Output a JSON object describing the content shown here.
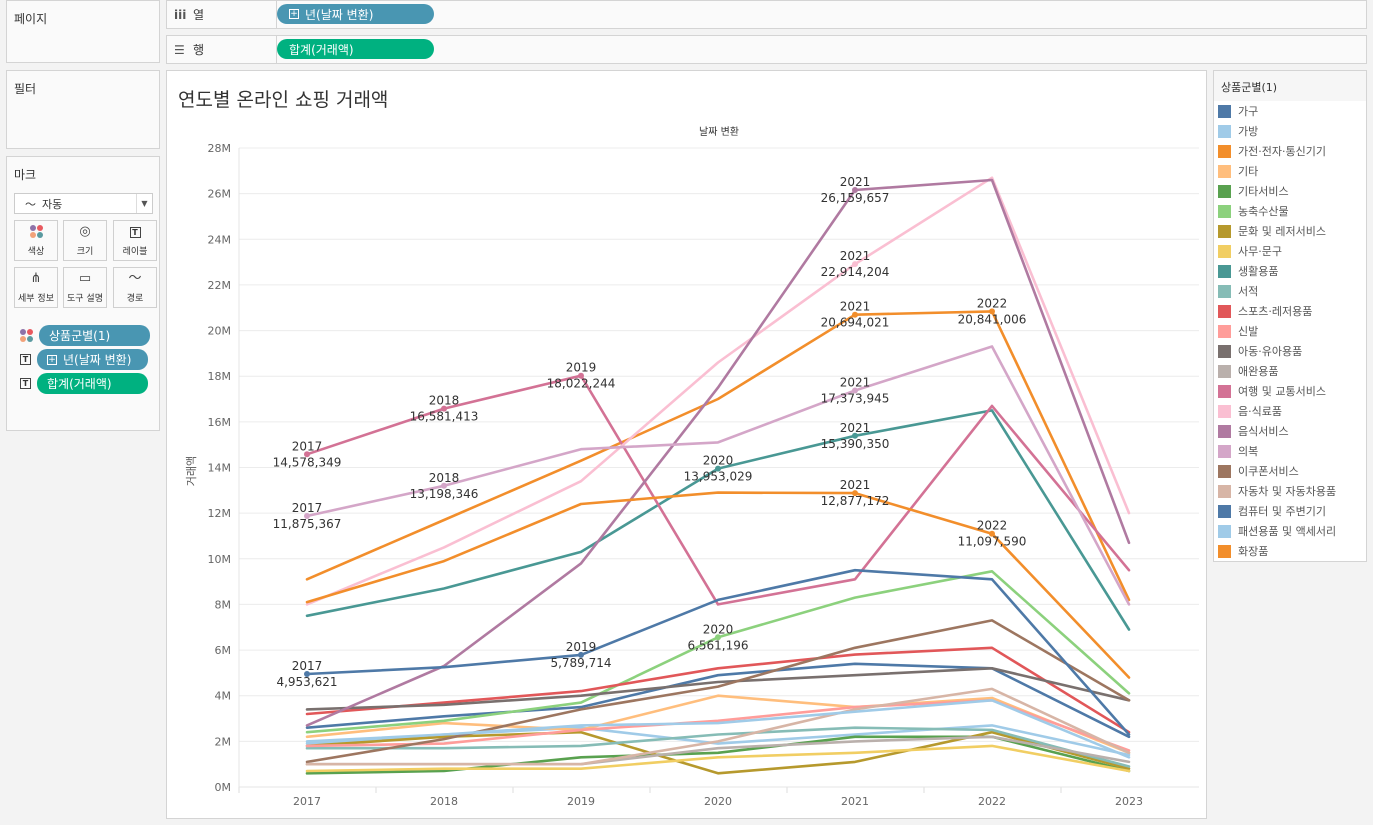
{
  "shelves": {
    "pages_label": "페이지",
    "filters_label": "필터",
    "columns": {
      "label": "열",
      "icon": "columns-icon",
      "pill": "년(날짜 변환)"
    },
    "rows": {
      "label": "행",
      "icon": "rows-icon",
      "pill": "합계(거래액)"
    }
  },
  "marks": {
    "title": "마크",
    "mark_type": "자동",
    "buttons": [
      {
        "id": "color",
        "label": "색상",
        "icon": "color-icon"
      },
      {
        "id": "size",
        "label": "크기",
        "icon": "size-icon"
      },
      {
        "id": "label",
        "label": "레이블",
        "icon": "label-icon"
      },
      {
        "id": "detail",
        "label": "세부 정보",
        "icon": "detail-icon"
      },
      {
        "id": "tooltip",
        "label": "도구 설명",
        "icon": "tooltip-icon"
      },
      {
        "id": "path",
        "label": "경로",
        "icon": "path-icon"
      }
    ],
    "fields": [
      {
        "icon": "color-icon",
        "label": "상품군별(1)",
        "color": "#4996b2"
      },
      {
        "icon": "label-icon",
        "label": "년(날짜 변환)",
        "color": "#4996b2",
        "has_plus": true
      },
      {
        "icon": "label-icon",
        "label": "합계(거래액)",
        "color": "#00b180"
      }
    ]
  },
  "legend": {
    "title": "상품군별(1)"
  },
  "chart_data": {
    "type": "line",
    "title": "연도별 온라인 쇼핑 거래액",
    "header": "날짜 변환",
    "xlabel": "",
    "ylabel": "거래액",
    "x": [
      "2017",
      "2018",
      "2019",
      "2020",
      "2021",
      "2022",
      "2023"
    ],
    "ylim": [
      0,
      28000000
    ],
    "yticks": [
      0,
      2000000,
      4000000,
      6000000,
      8000000,
      10000000,
      12000000,
      14000000,
      16000000,
      18000000,
      20000000,
      22000000,
      24000000,
      26000000,
      28000000
    ],
    "ytick_labels": [
      "0M",
      "2M",
      "4M",
      "6M",
      "8M",
      "10M",
      "12M",
      "14M",
      "16M",
      "18M",
      "20M",
      "22M",
      "24M",
      "26M",
      "28M"
    ],
    "grid": true,
    "legend_position": "right",
    "series": [
      {
        "name": "가구",
        "color": "#4e79a7",
        "values": [
          2600000,
          3100000,
          3500000,
          4900000,
          5400000,
          5200000,
          2200000
        ]
      },
      {
        "name": "가방",
        "color": "#a0cbe8",
        "values": [
          1900000,
          2300000,
          2600000,
          1900000,
          2300000,
          2700000,
          1400000
        ]
      },
      {
        "name": "가전·전자·통신기기",
        "color": "#f28e2b",
        "values": [
          9100000,
          11700000,
          14300000,
          17000000,
          20694021,
          20841006,
          8200000
        ]
      },
      {
        "name": "기타",
        "color": "#ffbe7d",
        "values": [
          2200000,
          2800000,
          2500000,
          4000000,
          3500000,
          3900000,
          1500000
        ]
      },
      {
        "name": "기타서비스",
        "color": "#59a14f",
        "values": [
          600000,
          700000,
          1300000,
          1500000,
          2200000,
          2200000,
          700000
        ]
      },
      {
        "name": "농축수산물",
        "color": "#8cd17d",
        "values": [
          2400000,
          2900000,
          3700000,
          6561196,
          8300000,
          9450000,
          4100000
        ]
      },
      {
        "name": "문화 및 레저서비스",
        "color": "#b6992d",
        "values": [
          1800000,
          2200000,
          2400000,
          600000,
          1100000,
          2400000,
          800000
        ]
      },
      {
        "name": "사무·문구",
        "color": "#f1ce63",
        "values": [
          700000,
          800000,
          800000,
          1300000,
          1500000,
          1800000,
          700000
        ]
      },
      {
        "name": "생활용품",
        "color": "#499894",
        "values": [
          7500000,
          8700000,
          10300000,
          13953029,
          15390350,
          16500000,
          6900000
        ]
      },
      {
        "name": "서적",
        "color": "#86bcb6",
        "values": [
          1700000,
          1700000,
          1800000,
          2300000,
          2600000,
          2500000,
          900000
        ]
      },
      {
        "name": "스포츠·레저용품",
        "color": "#e15759",
        "values": [
          3200000,
          3700000,
          4200000,
          5200000,
          5800000,
          6100000,
          2400000
        ]
      },
      {
        "name": "신발",
        "color": "#ff9d9a",
        "values": [
          1800000,
          1900000,
          2500000,
          2900000,
          3500000,
          3800000,
          1600000
        ]
      },
      {
        "name": "아동·유아용품",
        "color": "#79706e",
        "values": [
          3400000,
          3600000,
          4000000,
          4600000,
          4900000,
          5200000,
          3800000
        ]
      },
      {
        "name": "애완용품",
        "color": "#bab0ac",
        "values": [
          1000000,
          1000000,
          1000000,
          1700000,
          2000000,
          2200000,
          1100000
        ]
      },
      {
        "name": "여행 및 교통서비스",
        "color": "#d37295",
        "values": [
          14578349,
          16581413,
          18022244,
          8000000,
          9100000,
          16700000,
          9500000
        ]
      },
      {
        "name": "음·식료품",
        "color": "#fabfd2",
        "values": [
          8000000,
          10500000,
          13400000,
          18600000,
          22914204,
          26700000,
          12000000
        ]
      },
      {
        "name": "음식서비스",
        "color": "#b07aa1",
        "values": [
          2700000,
          5300000,
          9800000,
          17500000,
          26159657,
          26600000,
          10700000
        ]
      },
      {
        "name": "의복",
        "color": "#d4a6c8",
        "values": [
          11875367,
          13198346,
          14800000,
          15100000,
          17373945,
          19300000,
          8000000
        ]
      },
      {
        "name": "이쿠폰서비스",
        "color": "#9d7660",
        "values": [
          1100000,
          2100000,
          3400000,
          4400000,
          6100000,
          7300000,
          3800000
        ]
      },
      {
        "name": "자동차 및 자동차용품",
        "color": "#d7b5a6",
        "values": [
          1000000,
          1000000,
          1000000,
          2000000,
          3400000,
          4300000,
          1500000
        ]
      },
      {
        "name": "컴퓨터 및 주변기기",
        "color": "#4e79a7",
        "values": [
          4953621,
          5250000,
          5789714,
          8200000,
          9500000,
          9100000,
          2300000
        ]
      },
      {
        "name": "패션용품 및 액세서리",
        "color": "#a0cbe8",
        "values": [
          2000000,
          2300000,
          2700000,
          2800000,
          3300000,
          3800000,
          1300000
        ]
      },
      {
        "name": "화장품",
        "color": "#f28e2b",
        "values": [
          8100000,
          9900000,
          12400000,
          12900000,
          12877172,
          11097590,
          4800000
        ]
      }
    ],
    "annotations": [
      {
        "series": "여행 및 교통서비스",
        "x": "2017",
        "year": "2017",
        "value_label": "14,578,349"
      },
      {
        "series": "여행 및 교통서비스",
        "x": "2018",
        "year": "2018",
        "value_label": "16,581,413"
      },
      {
        "series": "여행 및 교통서비스",
        "x": "2019",
        "year": "2019",
        "value_label": "18,022,244"
      },
      {
        "series": "의복",
        "x": "2017",
        "year": "2017",
        "value_label": "11,875,367"
      },
      {
        "series": "의복",
        "x": "2018",
        "year": "2018",
        "value_label": "13,198,346"
      },
      {
        "series": "의복",
        "x": "2021",
        "year": "2021",
        "value_label": "17,373,945"
      },
      {
        "series": "컴퓨터 및 주변기기",
        "x": "2017",
        "year": "2017",
        "value_label": "4,953,621"
      },
      {
        "series": "컴퓨터 및 주변기기",
        "x": "2019",
        "year": "2019",
        "value_label": "5,789,714"
      },
      {
        "series": "생활용품",
        "x": "2020",
        "year": "2020",
        "value_label": "13,953,029"
      },
      {
        "series": "생활용품",
        "x": "2021",
        "year": "2021",
        "value_label": "15,390,350"
      },
      {
        "series": "농축수산물",
        "x": "2020",
        "year": "2020",
        "value_label": "6,561,196"
      },
      {
        "series": "음식서비스",
        "x": "2021",
        "year": "2021",
        "value_label": "26,159,657"
      },
      {
        "series": "음·식료품",
        "x": "2021",
        "year": "2021",
        "value_label": "22,914,204"
      },
      {
        "series": "가전·전자·통신기기",
        "x": "2021",
        "year": "2021",
        "value_label": "20,694,021"
      },
      {
        "series": "가전·전자·통신기기",
        "x": "2022",
        "year": "2022",
        "value_label": "20,841,006"
      },
      {
        "series": "화장품",
        "x": "2021",
        "year": "2021",
        "value_label": "12,877,172"
      },
      {
        "series": "화장품",
        "x": "2022",
        "year": "2022",
        "value_label": "11,097,590"
      }
    ]
  }
}
